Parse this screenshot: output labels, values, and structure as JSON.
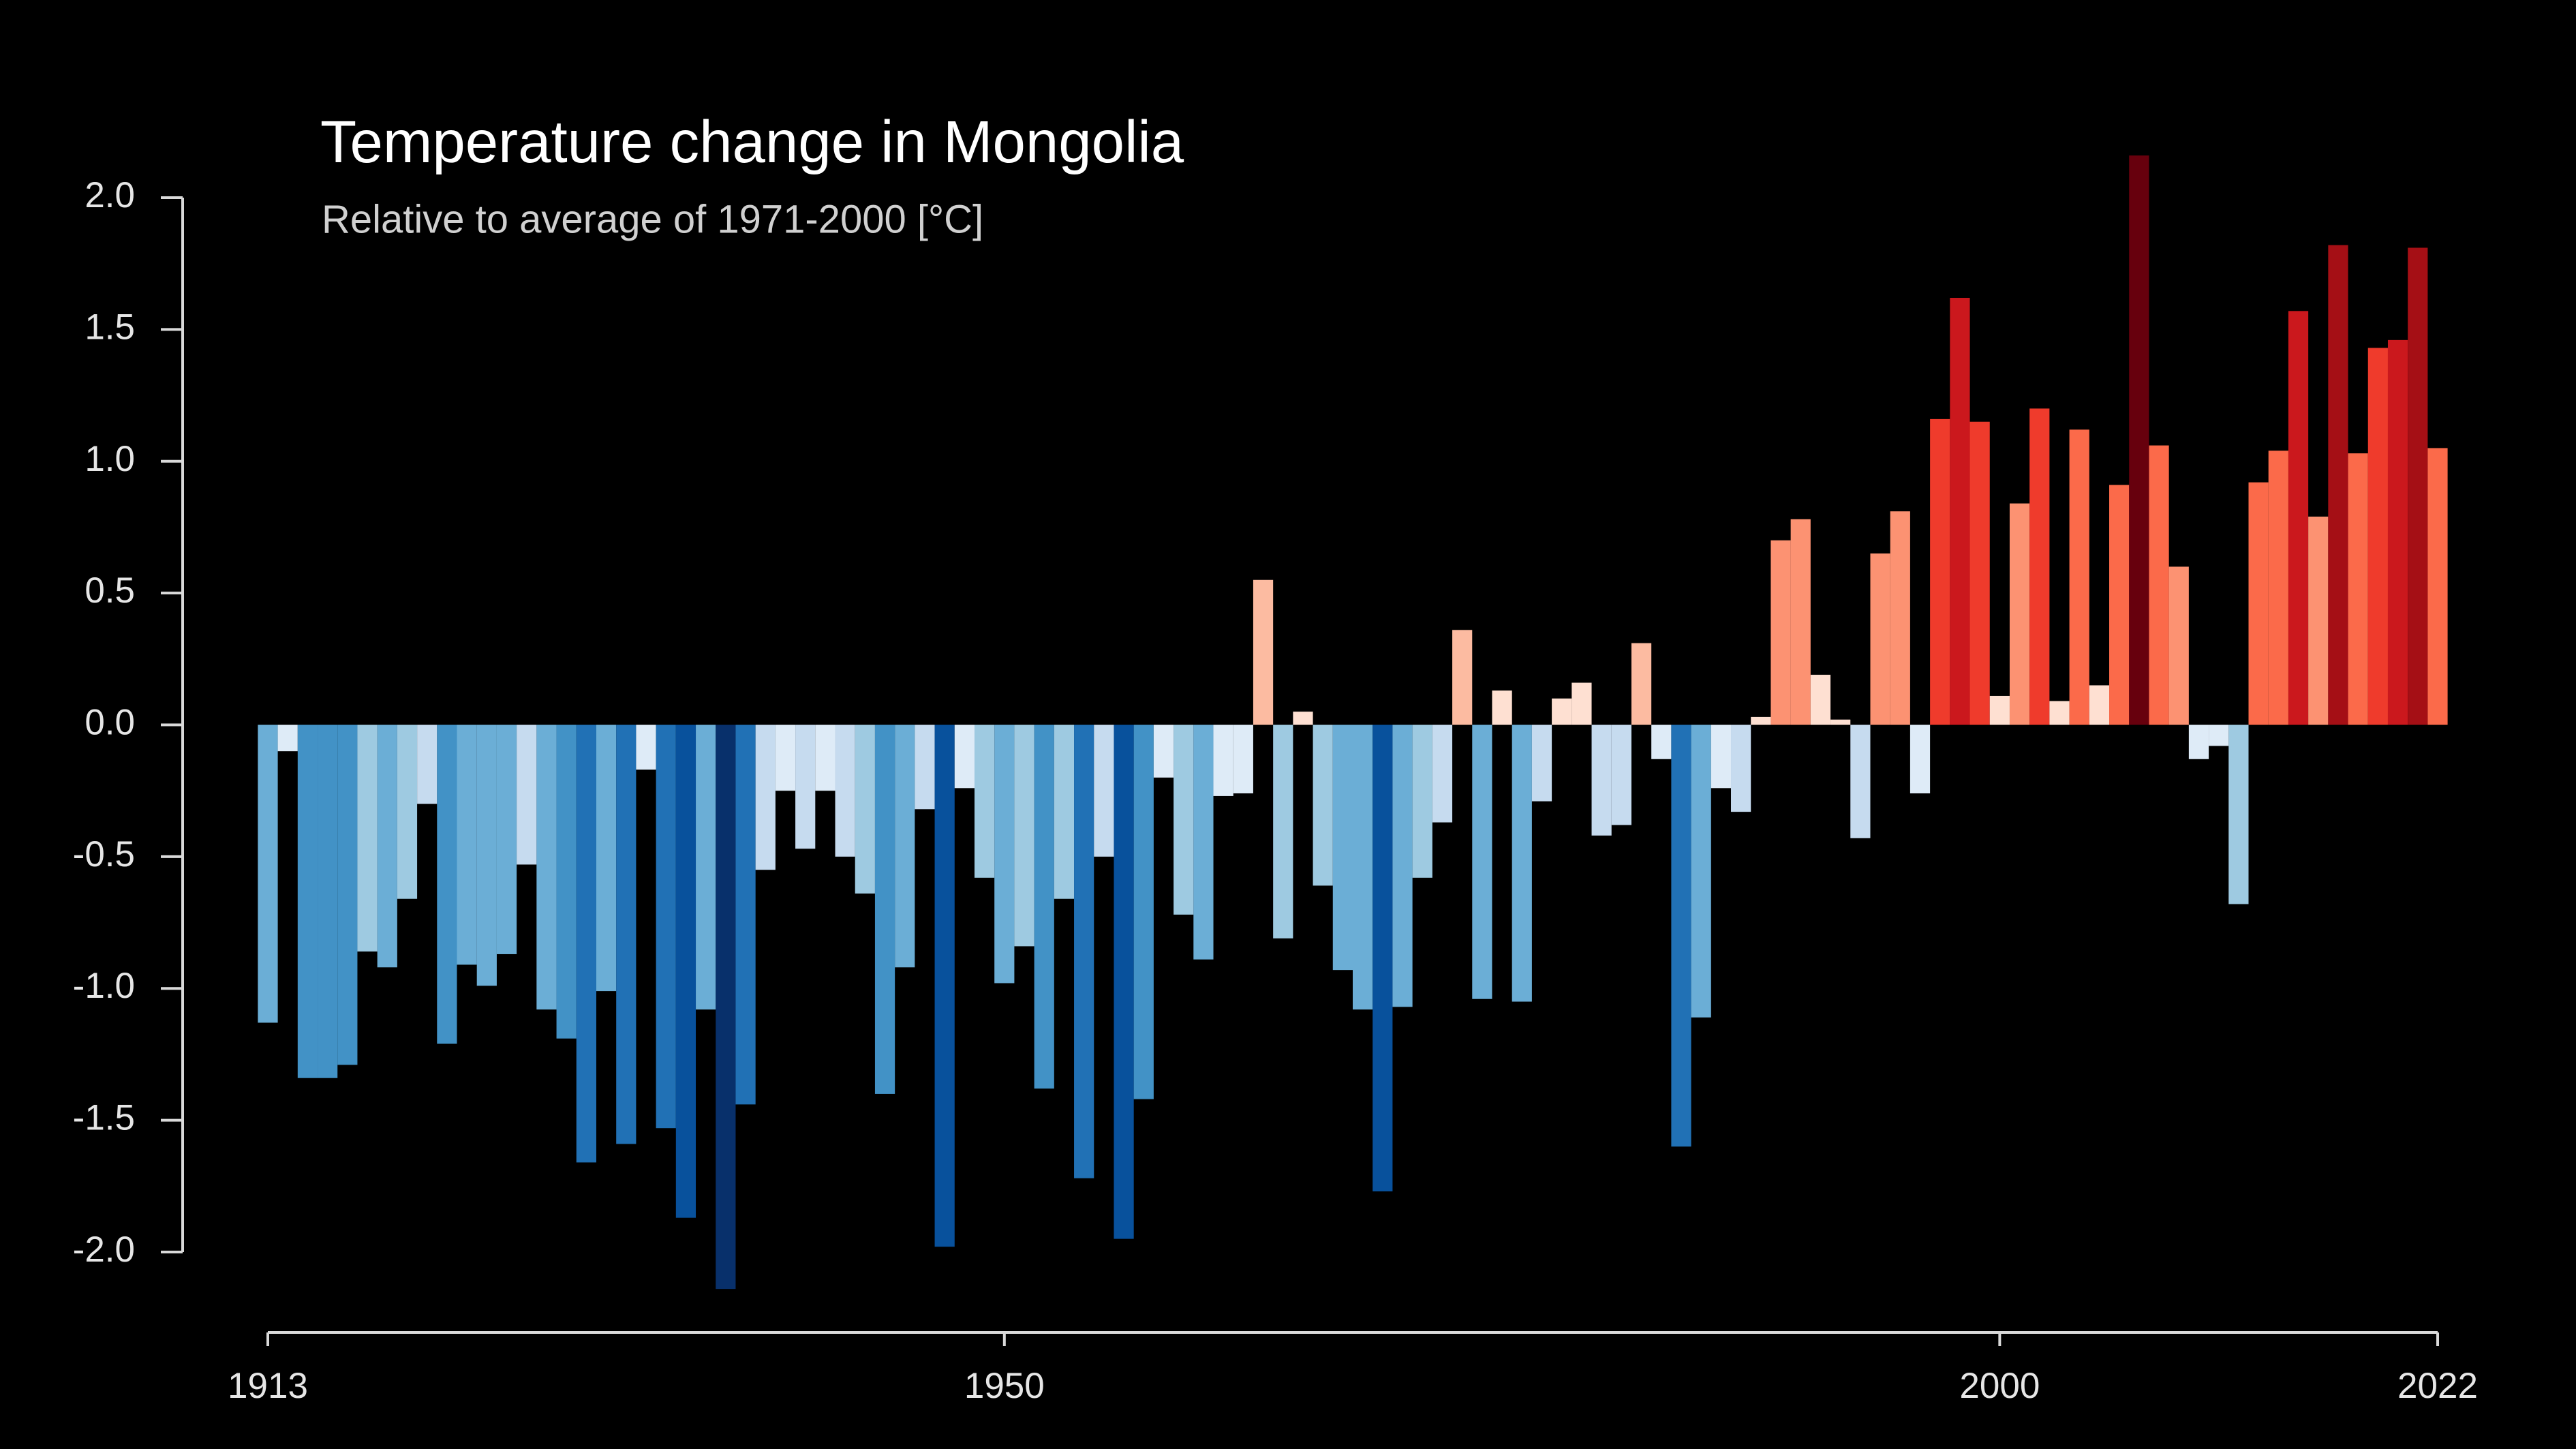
{
  "chart_data": {
    "type": "bar",
    "title": "Temperature change in Mongolia",
    "subtitle": "Relative to average of 1971-2000  [°C]",
    "x": [
      1913,
      1914,
      1915,
      1916,
      1917,
      1918,
      1919,
      1920,
      1921,
      1922,
      1923,
      1924,
      1925,
      1926,
      1927,
      1928,
      1929,
      1930,
      1931,
      1932,
      1933,
      1934,
      1935,
      1936,
      1937,
      1938,
      1939,
      1940,
      1941,
      1942,
      1943,
      1944,
      1945,
      1946,
      1947,
      1948,
      1949,
      1950,
      1951,
      1952,
      1953,
      1954,
      1955,
      1956,
      1957,
      1958,
      1959,
      1960,
      1961,
      1962,
      1963,
      1964,
      1965,
      1966,
      1967,
      1968,
      1969,
      1970,
      1971,
      1972,
      1973,
      1974,
      1975,
      1976,
      1977,
      1978,
      1979,
      1980,
      1981,
      1982,
      1983,
      1984,
      1985,
      1986,
      1987,
      1988,
      1989,
      1990,
      1991,
      1992,
      1993,
      1994,
      1995,
      1996,
      1997,
      1998,
      1999,
      2000,
      2001,
      2002,
      2003,
      2004,
      2005,
      2006,
      2007,
      2008,
      2009,
      2010,
      2011,
      2012,
      2013,
      2014,
      2015,
      2016,
      2017,
      2018,
      2019,
      2020,
      2021,
      2022
    ],
    "values": [
      -1.13,
      -0.1,
      -1.34,
      -1.34,
      -1.29,
      -0.86,
      -0.92,
      -0.66,
      -0.3,
      -1.21,
      -0.91,
      -0.99,
      -0.87,
      -0.53,
      -1.08,
      -1.19,
      -1.66,
      -1.01,
      -1.59,
      -0.17,
      -1.53,
      -1.87,
      -1.08,
      -2.14,
      -1.44,
      -0.55,
      -0.25,
      -0.47,
      -0.25,
      -0.5,
      -0.64,
      -1.4,
      -0.92,
      -0.32,
      -1.98,
      -0.24,
      -0.58,
      -0.98,
      -0.84,
      -1.38,
      -0.66,
      -1.72,
      -0.5,
      -1.95,
      -1.42,
      -0.2,
      -0.72,
      -0.89,
      -0.27,
      -0.26,
      0.55,
      -0.81,
      0.05,
      -0.61,
      -0.93,
      -1.08,
      -1.77,
      -1.07,
      -0.58,
      -0.37,
      0.36,
      -1.04,
      0.13,
      -1.05,
      -0.29,
      0.1,
      0.16,
      -0.42,
      -0.38,
      0.31,
      -0.13,
      -1.6,
      -1.11,
      -0.24,
      -0.33,
      0.03,
      0.7,
      0.78,
      0.19,
      0.02,
      -0.43,
      0.65,
      0.81,
      -0.26,
      1.16,
      1.62,
      1.15,
      0.11,
      0.84,
      1.2,
      0.09,
      1.12,
      0.15,
      0.91,
      2.16,
      1.06,
      0.6,
      -0.13,
      -0.08,
      -0.68,
      0.92,
      1.04,
      1.57,
      0.79,
      1.82,
      1.03,
      1.43,
      1.46,
      1.81,
      1.05
    ],
    "colormap": [
      "#08306b",
      "#08519c",
      "#2171b5",
      "#4292c6",
      "#6baed6",
      "#9ecae1",
      "#c6dbef",
      "#deebf7",
      "#fee0d2",
      "#fcbba1",
      "#fc9272",
      "#fb6a4a",
      "#ef3b2c",
      "#cb181d",
      "#a50f15",
      "#67000d"
    ],
    "xlim": [
      1913,
      2022
    ],
    "xticks": [
      1913,
      1950,
      2000,
      2022
    ],
    "ylim": [
      -2.3,
      2.3
    ],
    "yticks": [
      {
        "value": -2.0,
        "label": "-2.0"
      },
      -1.5,
      {
        "value": -1.0,
        "label": "-1.0"
      },
      -0.5,
      {
        "value": 0.0,
        "label": "0.0"
      },
      0.5,
      {
        "value": 1.0,
        "label": "1.0"
      },
      1.5,
      {
        "value": 2.0,
        "label": "2.0"
      }
    ],
    "axis_color": "#d9d9d9",
    "grid": false
  }
}
